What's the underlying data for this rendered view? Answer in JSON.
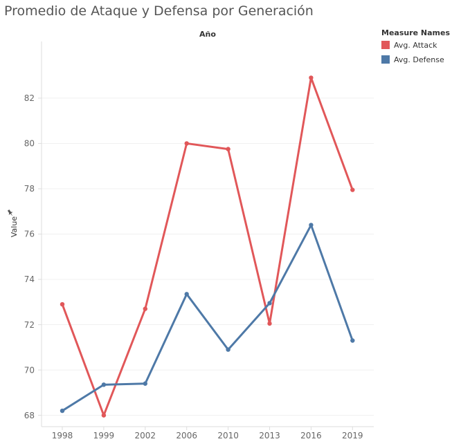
{
  "title": "Promedio de Ataque y Defensa por Generación",
  "legend": {
    "title": "Measure Names",
    "items": [
      {
        "label": "Avg. Attack",
        "color": "#e15759"
      },
      {
        "label": "Avg. Defense",
        "color": "#4e79a7"
      }
    ]
  },
  "chart_data": {
    "type": "line",
    "title": "Promedio de Ataque y Defensa por Generación",
    "column_header": "Año",
    "xlabel": "",
    "ylabel": "Value",
    "categories": [
      "1998",
      "1999",
      "2002",
      "2006",
      "2010",
      "2013",
      "2016",
      "2019"
    ],
    "series": [
      {
        "name": "Avg. Attack",
        "color": "#e15759",
        "values": [
          72.9,
          68.0,
          72.7,
          80.0,
          79.75,
          72.05,
          82.9,
          77.95
        ]
      },
      {
        "name": "Avg. Defense",
        "color": "#4e79a7",
        "values": [
          68.2,
          69.35,
          69.4,
          73.35,
          70.9,
          72.95,
          76.4,
          71.3
        ]
      }
    ],
    "yticks": [
      68,
      70,
      72,
      74,
      76,
      78,
      80,
      82
    ],
    "ylim": [
      67.5,
      84.5
    ],
    "grid": true,
    "legend_position": "top-right"
  }
}
